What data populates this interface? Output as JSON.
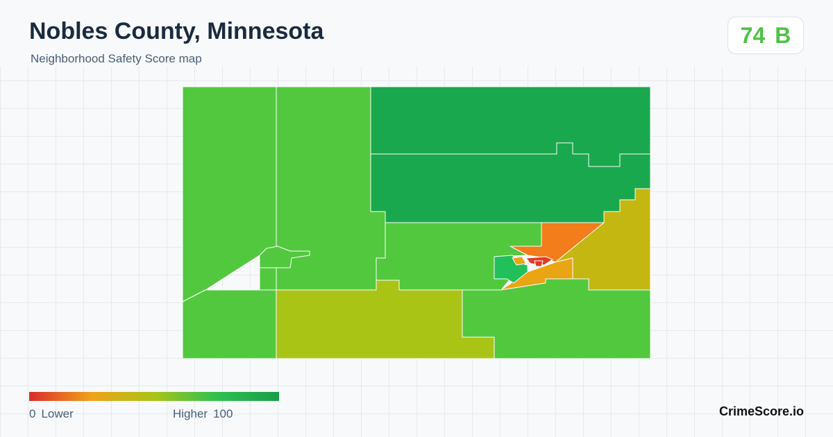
{
  "header": {
    "title": "Nobles County, Minnesota",
    "subtitle": "Neighborhood Safety Score map"
  },
  "score": {
    "value": "74",
    "grade": "B",
    "color": "#4ec244"
  },
  "legend": {
    "min_value": "0",
    "min_label": "Lower",
    "max_label": "Higher",
    "max_value": "100",
    "gradient_colors": [
      "#d92c2c",
      "#f0a21a",
      "#a9c418",
      "#2fc050",
      "#189e4a"
    ]
  },
  "brand": "CrimeScore.io",
  "map_colors": {
    "green": "#52c83e",
    "dark_green": "#1aa84e",
    "yellow_green": "#aac416",
    "olive_yellow": "#c4b712",
    "orange": "#f27d1a",
    "amber": "#eaa514",
    "red": "#de3b26",
    "teal_green": "#22c05a",
    "border": "#ffffff"
  }
}
